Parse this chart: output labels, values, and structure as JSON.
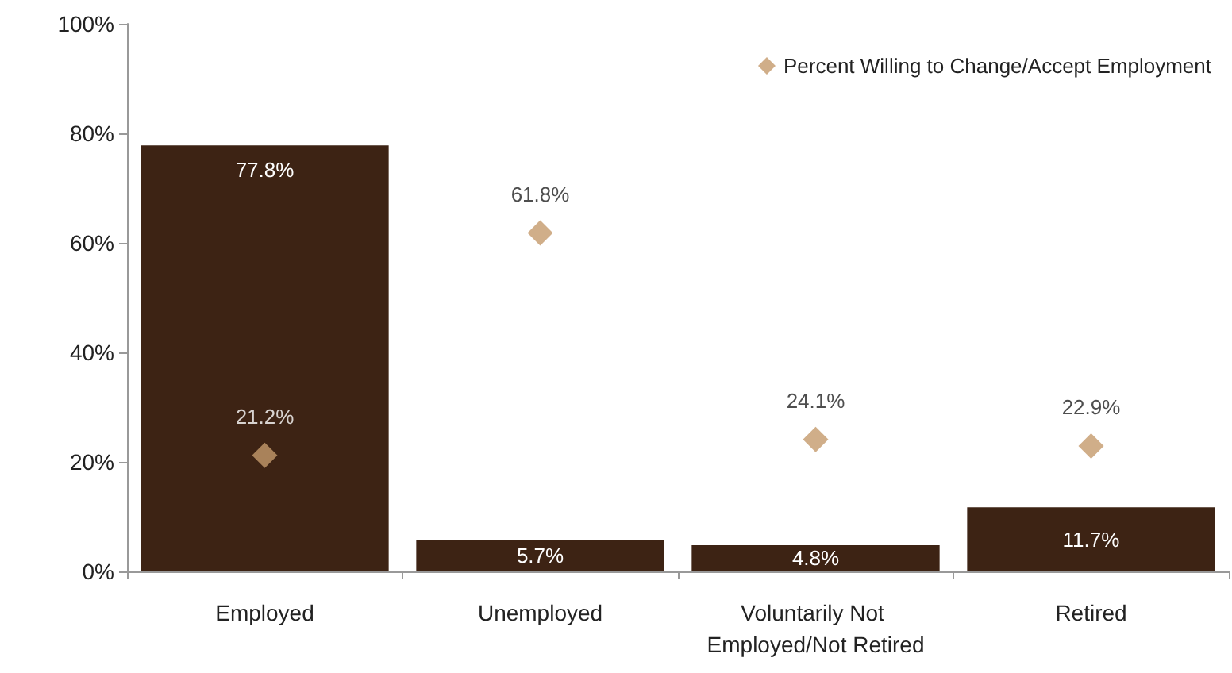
{
  "chart_data": {
    "type": "bar",
    "categories": [
      "Employed",
      "Unemployed",
      "Voluntarily Not Employed/Not Retired",
      "Retired"
    ],
    "series": [
      {
        "color": "#3d2314",
        "values": [
          77.8,
          5.7,
          4.8,
          11.7
        ],
        "value_labels": [
          "77.8%",
          "5.7%",
          "4.8%",
          "11.7%"
        ]
      },
      {
        "type": "scatter",
        "name": "Percent Willing to Change/Accept Employment",
        "color": "#c49a6c",
        "marker": "diamond",
        "values": [
          21.2,
          61.8,
          24.1,
          22.9
        ],
        "value_labels": [
          "21.2%",
          "61.8%",
          "24.1%",
          "22.9%"
        ]
      }
    ],
    "ylim": [
      0,
      100
    ],
    "yticks": [
      {
        "value": 0,
        "label": "0%"
      },
      {
        "value": 20,
        "label": "20%"
      },
      {
        "value": 40,
        "label": "40%"
      },
      {
        "value": 60,
        "label": "60%"
      },
      {
        "value": 80,
        "label": "80%"
      },
      {
        "value": 100,
        "label": "100%"
      }
    ],
    "grid": false,
    "legend": "top right"
  }
}
